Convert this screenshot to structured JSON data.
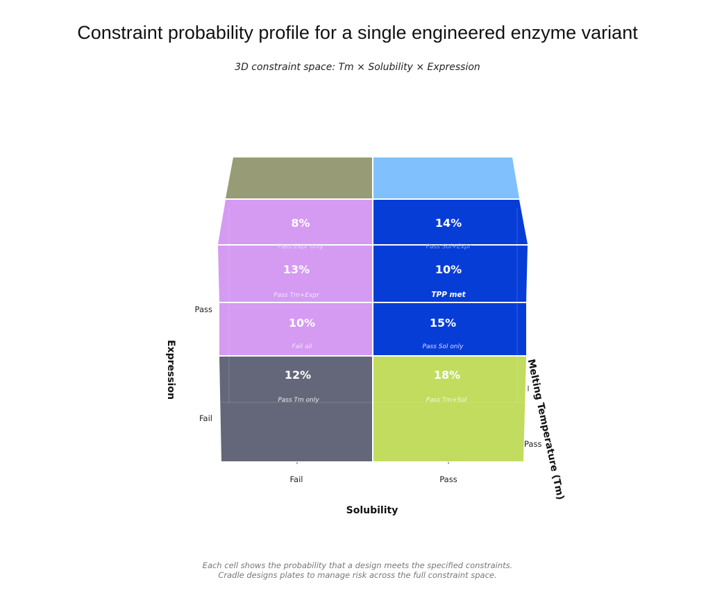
{
  "title": "Constraint probability profile for a single engineered enzyme variant",
  "subtitle": "3D constraint space: Tm × Solubility × Expression",
  "chart_data": {
    "type": "heatmap",
    "dimensions": [
      "Tm",
      "Solubility",
      "Expression"
    ],
    "cells": [
      {
        "value": "8%",
        "label": "Pass Expr only",
        "tm": "Fail",
        "solubility": "Fail",
        "expression": "Pass"
      },
      {
        "value": "14%",
        "label": "Pass Sol+Expr",
        "tm": "Fail",
        "solubility": "Pass",
        "expression": "Pass"
      },
      {
        "value": "13%",
        "label": "Pass Tm+Expr",
        "tm": "Pass",
        "solubility": "Fail",
        "expression": "Pass"
      },
      {
        "value": "10%",
        "label": "TPP met",
        "tm": "Pass",
        "solubility": "Pass",
        "expression": "Pass"
      },
      {
        "value": "10%",
        "label": "Fail all",
        "tm": "Fail",
        "solubility": "Fail",
        "expression": "Fail"
      },
      {
        "value": "15%",
        "label": "Pass Sol only",
        "tm": "Fail",
        "solubility": "Pass",
        "expression": "Fail"
      },
      {
        "value": "12%",
        "label": "Pass Tm only",
        "tm": "Pass",
        "solubility": "Fail",
        "expression": "Fail"
      },
      {
        "value": "18%",
        "label": "Pass Tm+Sol",
        "tm": "Pass",
        "solubility": "Pass",
        "expression": "Fail"
      }
    ],
    "xlabel": "Solubility",
    "x_ticks": [
      "Fail",
      "Pass"
    ],
    "ylabel": "Expression",
    "y_ticks": [
      "Pass",
      "Fail"
    ],
    "zlabel": "Melting Temperature (Tm)",
    "z_ticks": [
      "Pass"
    ]
  },
  "colors": {
    "olive": "#989c76",
    "light_blue": "#80c0fc",
    "lavender": "#d59af2",
    "royal_blue": "#073dd7",
    "slate": "#646679",
    "lime": "#c1dc5e"
  },
  "footnote": {
    "line1": "Each cell shows the probability that a design meets the specified constraints.",
    "line2": "Cradle designs plates to manage risk across the full constraint space."
  }
}
